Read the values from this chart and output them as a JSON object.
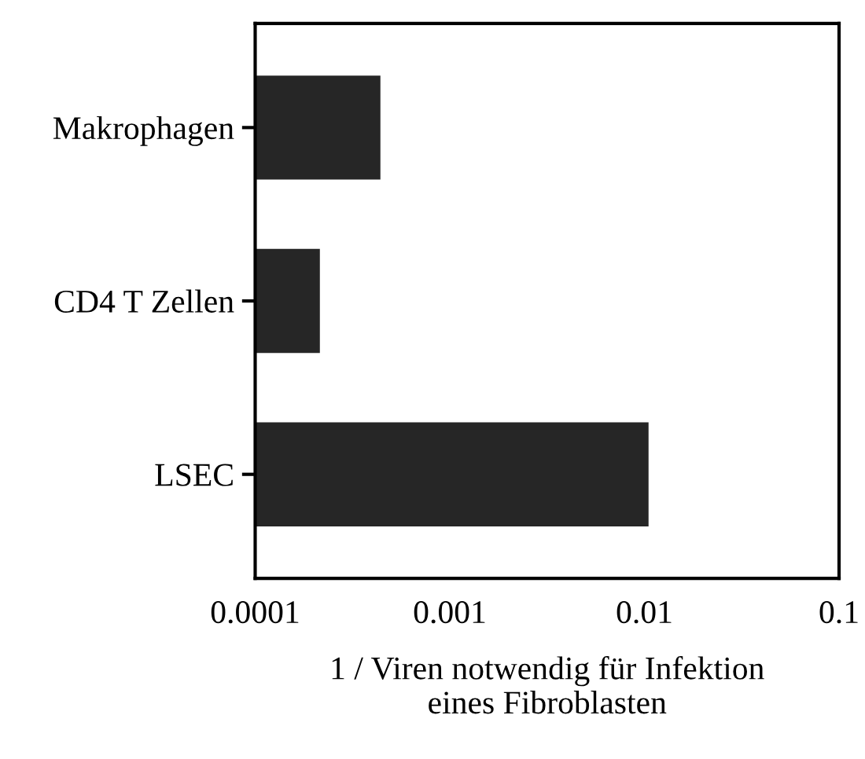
{
  "chart_data": {
    "type": "bar",
    "orientation": "horizontal",
    "log": "x",
    "categories": [
      "Makrophagen",
      "CD4 T Zellen",
      "LSEC"
    ],
    "values": [
      0.00044,
      0.000215,
      0.0105
    ],
    "color": "#262626",
    "xlim": [
      0.0001,
      0.1
    ],
    "xticks": [
      0.0001,
      0.001,
      0.01,
      0.1
    ],
    "xlabel": "1 / Viren notwendig für Infektion\neines Fibroblasten",
    "grid": false,
    "legend": false
  }
}
